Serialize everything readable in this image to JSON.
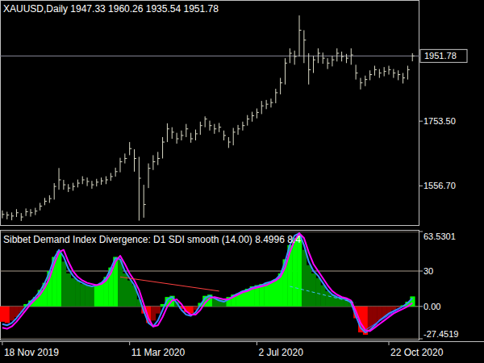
{
  "chart_data": [
    {
      "type": "ohlc",
      "title": "XAUUSD,Daily  1947.33 1960.26 1935.54 1951.78",
      "color": "#d9d9c6",
      "categories": [
        "18 Nov 2019",
        null,
        null,
        null,
        null,
        null,
        null,
        null,
        null,
        null,
        null,
        null,
        null,
        null,
        null,
        null,
        null,
        null,
        null,
        null,
        null,
        null,
        null,
        null,
        null,
        null,
        null,
        "11 Mar 2020",
        null,
        null,
        null,
        null,
        null,
        null,
        null,
        null,
        null,
        null,
        null,
        null,
        null,
        null,
        null,
        null,
        null,
        null,
        null,
        null,
        null,
        null,
        null,
        null,
        null,
        null,
        "2 Jul 2020",
        null,
        null,
        null,
        null,
        null,
        null,
        null,
        null,
        null,
        null,
        null,
        null,
        null,
        null,
        null,
        null,
        null,
        null,
        null,
        null,
        null,
        null,
        null,
        null,
        null,
        null,
        null,
        "22 Oct 2020",
        null,
        null,
        null,
        null,
        null
      ],
      "high": [
        1482,
        1478,
        1476,
        1486,
        1474,
        1488,
        1486,
        1490,
        1505,
        1520,
        1528,
        1565,
        1611,
        1575,
        1562,
        1566,
        1576,
        1586,
        1582,
        1572,
        1578,
        1582,
        1586,
        1596,
        1612,
        1642,
        1655,
        1690,
        1668,
        1645,
        1560,
        1625,
        1650,
        1660,
        1705,
        1747,
        1735,
        1718,
        1725,
        1745,
        1718,
        1728,
        1752,
        1768,
        1755,
        1745,
        1748,
        1725,
        1705,
        1733,
        1742,
        1752,
        1772,
        1782,
        1792,
        1815,
        1818,
        1822,
        1852,
        1885,
        1945,
        1975,
        1968,
        2075,
        2030,
        1960,
        1952,
        1975,
        1962,
        1945,
        1952,
        1975,
        1965,
        1958,
        1975,
        1925,
        1885,
        1892,
        1908,
        1922,
        1912,
        1918,
        1922,
        1912,
        1908,
        1900,
        1922,
        1960.26
      ],
      "low": [
        1458,
        1455,
        1452,
        1462,
        1450,
        1465,
        1463,
        1468,
        1482,
        1498,
        1505,
        1515,
        1545,
        1545,
        1538,
        1542,
        1552,
        1562,
        1556,
        1548,
        1555,
        1560,
        1562,
        1572,
        1585,
        1598,
        1625,
        1650,
        1600,
        1451,
        1460,
        1550,
        1605,
        1620,
        1640,
        1690,
        1700,
        1685,
        1695,
        1705,
        1688,
        1695,
        1712,
        1735,
        1725,
        1715,
        1720,
        1695,
        1672,
        1680,
        1712,
        1725,
        1740,
        1752,
        1762,
        1775,
        1790,
        1795,
        1808,
        1835,
        1865,
        1930,
        1925,
        1950,
        1930,
        1865,
        1900,
        1930,
        1928,
        1912,
        1920,
        1935,
        1935,
        1930,
        1925,
        1880,
        1850,
        1860,
        1878,
        1892,
        1885,
        1890,
        1895,
        1885,
        1878,
        1868,
        1880,
        1935.54
      ],
      "close": [
        1470,
        1468,
        1465,
        1475,
        1462,
        1478,
        1475,
        1480,
        1495,
        1510,
        1518,
        1555,
        1575,
        1560,
        1550,
        1555,
        1565,
        1575,
        1570,
        1560,
        1568,
        1572,
        1575,
        1585,
        1600,
        1630,
        1640,
        1670,
        1640,
        1580,
        1500,
        1610,
        1630,
        1640,
        1690,
        1730,
        1720,
        1700,
        1710,
        1730,
        1700,
        1715,
        1740,
        1760,
        1740,
        1730,
        1735,
        1710,
        1690,
        1720,
        1730,
        1740,
        1760,
        1770,
        1780,
        1800,
        1805,
        1810,
        1840,
        1870,
        1930,
        1960,
        1950,
        2030,
        2000,
        1910,
        1940,
        1960,
        1945,
        1930,
        1940,
        1960,
        1950,
        1945,
        1955,
        1900,
        1870,
        1880,
        1895,
        1910,
        1900,
        1905,
        1910,
        1900,
        1895,
        1885,
        1910,
        1951.78
      ],
      "ylim": [
        1440,
        2117
      ],
      "yticks": [
        {
          "value": 1753.5,
          "label": "1753.50"
        },
        {
          "value": 1556.7,
          "label": "1556.70"
        }
      ],
      "annotations": [
        {
          "value": 1951.78,
          "label": "1951.78"
        }
      ]
    },
    {
      "type": "bar",
      "title": "Sibbet Demand Index Divergence:  D1   SDI smooth (14.00) 8.4996 8.4",
      "grid": true,
      "ylim": [
        -27.4519,
        63.5301
      ],
      "yticks": [
        {
          "value": 63.5301,
          "label": "63.5301"
        },
        30,
        {
          "value": 0,
          "label": "0.00"
        },
        {
          "value": -27.4519,
          "label": "-27.4519"
        }
      ],
      "series": [
        {
          "colors": [
            "#ff0000",
            "#ff0000",
            "#8b0000",
            "#8b0000",
            "#8b0000",
            "#00ff00",
            "#00ff00",
            "#00ff00",
            "#00ff00",
            "#00ff00",
            "#00ff00",
            "#00ff00",
            "#00ff00",
            "#008000",
            "#008000",
            "#008000",
            "#008000",
            "#008000",
            "#008000",
            "#008000",
            "#00ff00",
            "#00ff00",
            "#00ff00",
            "#00ff00",
            "#00ff00",
            "#008000",
            "#008000",
            "#008000",
            "#008000",
            "#008000",
            "#ff0000",
            "#ff0000",
            "#8b0000",
            "#8b0000",
            "#00ff00",
            "#00ff00",
            "#00ff00",
            "#008000",
            "#ff0000",
            "#ff0000",
            "#ff0000",
            "#8b0000",
            "#00ff00",
            "#00ff00",
            "#00ff00",
            "#008000",
            "#008000",
            "#008000",
            "#00ff00",
            "#00ff00",
            "#00ff00",
            "#00ff00",
            "#00ff00",
            "#00ff00",
            "#00ff00",
            "#00ff00",
            "#00ff00",
            "#00ff00",
            "#00ff00",
            "#00ff00",
            "#00ff00",
            "#00ff00",
            "#00ff00",
            "#00ff00",
            "#008000",
            "#008000",
            "#008000",
            "#008000",
            "#008000",
            "#008000",
            "#008000",
            "#008000",
            "#008000",
            "#008000",
            "#008000",
            "#ff0000",
            "#ff0000",
            "#ff0000",
            "#8b0000",
            "#8b0000",
            "#8b0000",
            "#8b0000",
            "#8b0000",
            "#8b0000",
            "#8b0000",
            "#00ff00",
            "#00ff00",
            "#00ff00"
          ],
          "values": [
            -13,
            -14,
            -12,
            -9,
            -5,
            2,
            5,
            8,
            14,
            20,
            30,
            42,
            47,
            38,
            28,
            24,
            22,
            19,
            18,
            17,
            18,
            20,
            25,
            33,
            42,
            40,
            28,
            22,
            18,
            6,
            -6,
            -14,
            -12,
            -6,
            2,
            8,
            9,
            4,
            -2,
            -5,
            -6,
            -3,
            3,
            9,
            10,
            8,
            7,
            6,
            8,
            10,
            11,
            13,
            15,
            17,
            18,
            19,
            20,
            21,
            23,
            28,
            40,
            52,
            58,
            60,
            48,
            35,
            28,
            24,
            18,
            13,
            10,
            8,
            7,
            5,
            3,
            -10,
            -22,
            -24,
            -20,
            -16,
            -12,
            -9,
            -6,
            -3,
            -1,
            1,
            4,
            8.4996
          ]
        },
        {
          "type": "line",
          "color": "#3c8cff",
          "values": [
            -15,
            -16,
            -14,
            -10,
            -5,
            0,
            4,
            8,
            13,
            20,
            29,
            41,
            48,
            42,
            32,
            26,
            22,
            20,
            18,
            17,
            18,
            20,
            24,
            32,
            41,
            40,
            30,
            24,
            18,
            8,
            -4,
            -14,
            -17,
            -12,
            -3,
            6,
            8,
            3,
            -3,
            -7,
            -8,
            -5,
            1,
            7,
            9,
            7,
            5,
            4,
            6,
            9,
            11,
            13,
            14,
            16,
            17,
            18,
            20,
            21,
            23,
            27,
            38,
            52,
            60,
            62,
            52,
            38,
            30,
            26,
            20,
            14,
            10,
            8,
            7,
            6,
            3,
            -8,
            -18,
            -22,
            -20,
            -16,
            -12,
            -9,
            -6,
            -4,
            -2,
            0,
            3,
            7
          ]
        },
        {
          "type": "line",
          "color": "#ff00ff",
          "values": [
            -18,
            -19,
            -17,
            -13,
            -8,
            -3,
            2,
            6,
            10,
            16,
            24,
            36,
            46,
            48,
            38,
            30,
            25,
            22,
            20,
            19,
            18,
            19,
            22,
            28,
            38,
            43,
            36,
            28,
            22,
            14,
            2,
            -10,
            -17,
            -16,
            -9,
            0,
            5,
            6,
            2,
            -4,
            -7,
            -7,
            -3,
            3,
            7,
            8,
            7,
            6,
            6,
            8,
            10,
            12,
            13,
            15,
            16,
            17,
            18,
            20,
            22,
            25,
            33,
            46,
            56,
            62,
            58,
            46,
            36,
            30,
            24,
            18,
            13,
            10,
            8,
            7,
            5,
            -4,
            -14,
            -20,
            -21,
            -18,
            -15,
            -12,
            -9,
            -6,
            -4,
            -2,
            0,
            3
          ]
        }
      ],
      "trendlines": [
        {
          "x": [
            25,
            46
          ],
          "values": [
            25,
            13
          ],
          "color": "#ff4040",
          "line_style": "solid"
        },
        {
          "x": [
            61,
            75
          ],
          "values": [
            17,
            3
          ],
          "color": "#40c0ff",
          "line_style": "dashed"
        },
        {
          "x": [
            77,
            85
          ],
          "values": [
            -20,
            0
          ],
          "color": "#4060ff",
          "line_style": "solid"
        }
      ]
    }
  ]
}
